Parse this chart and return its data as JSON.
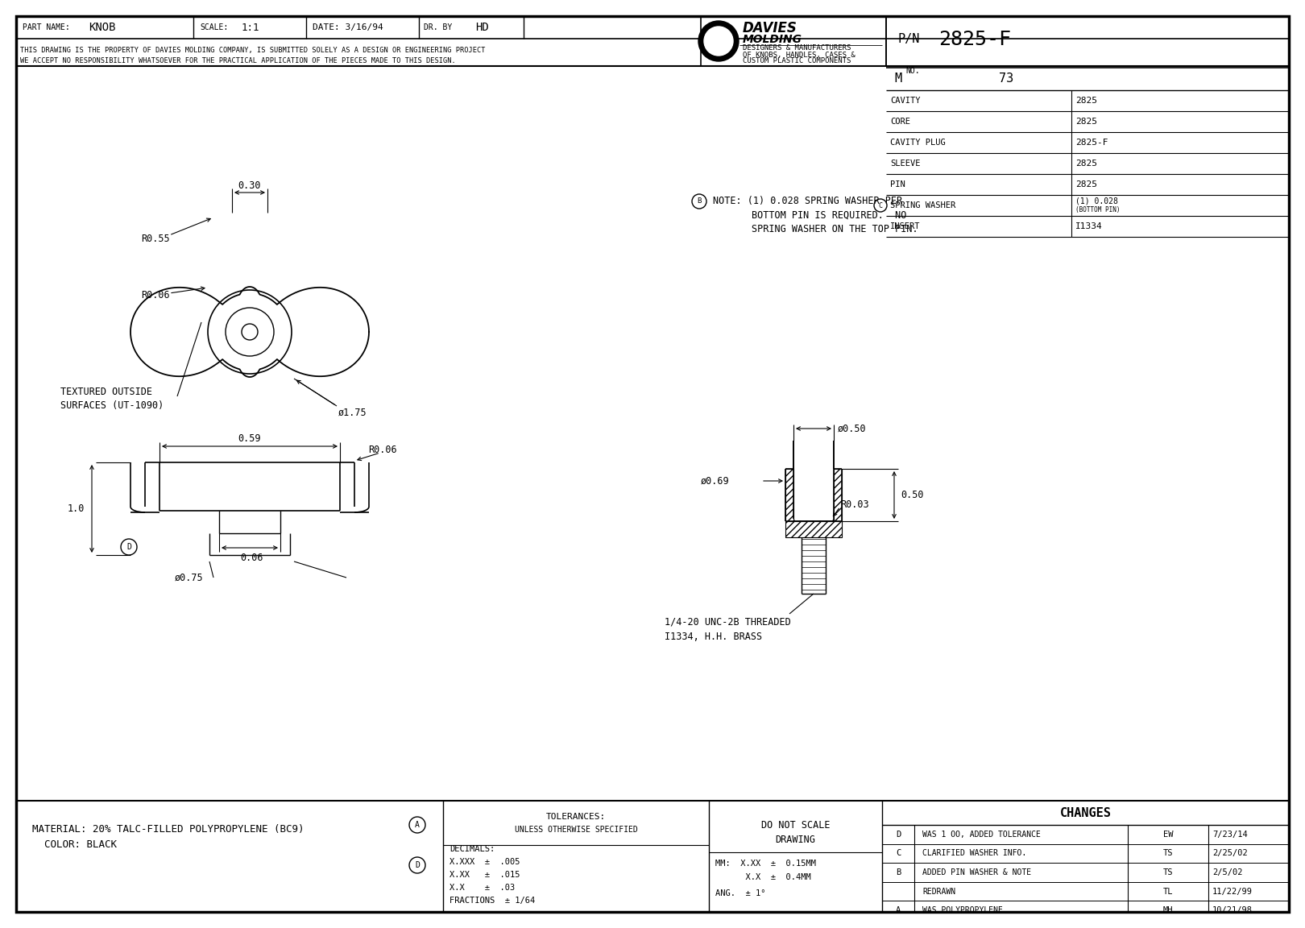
{
  "bg_color": "#ffffff",
  "part_name": "KNOB",
  "scale": "1:1",
  "date": "3/16/94",
  "dr_by": "HD",
  "pn": "2825-F",
  "mno": "73",
  "disclaimer_1": "THIS DRAWING IS THE PROPERTY OF DAVIES MOLDING COMPANY, IS SUBMITTED SOLELY AS A DESIGN OR ENGINEERING PROJECT",
  "disclaimer_2": "WE ACCEPT NO RESPONSIBILITY WHATSOEVER FOR THE PRACTICAL APPLICATION OF THE PIECES MADE TO THIS DESIGN.",
  "davies_desc1": "DESIGNERS & MANUFACTURERS",
  "davies_desc2": "OF KNOBS, HANDLES, CASES &",
  "davies_desc3": "CUSTOM PLASTIC COMPONENTS",
  "table_rows": [
    [
      "CAVITY",
      "2825"
    ],
    [
      "CORE",
      "2825"
    ],
    [
      "CAVITY PLUG",
      "2825-F"
    ],
    [
      "SLEEVE",
      "2825"
    ],
    [
      "PIN",
      "2825"
    ],
    [
      "SPRING WASHER",
      "(1) 0.028 (BOTTOM PIN)"
    ],
    [
      "INSERT",
      "I1334"
    ]
  ],
  "note_line1": "NOTE: (1) 0.028 SPRING WASHER PER",
  "note_line2": "BOTTOM PIN IS REQUIRED.  NO",
  "note_line3": "SPRING WASHER ON THE TOP PIN.",
  "material_line1": "MATERIAL: 20% TALC-FILLED POLYPROPYLENE (BC9)",
  "material_line2": "  COLOR: BLACK",
  "tolerances_title": "TOLERANCES:",
  "tolerances_sub": "UNLESS OTHERWISE SPECIFIED",
  "decimals_label": "DECIMALS:",
  "dec_xxx": "X.XXX  ±  .005",
  "dec_xx": "X.XX   ±  .015",
  "dec_x": "X.X    ±  .03",
  "fractions": "FRACTIONS  ± 1/64",
  "do_not_scale_1": "DO NOT SCALE",
  "do_not_scale_2": "DRAWING",
  "mm_1": "MM:  X.XX  ±  0.15MM",
  "mm_2": "      X.X  ±  0.4MM",
  "ang": "ANG.  ± 1°",
  "changes_header": "CHANGES",
  "changes": [
    [
      "D",
      "WAS 1 OO, ADDED TOLERANCE",
      "EW",
      "7/23/14"
    ],
    [
      "C",
      "CLARIFIED WASHER INFO.",
      "TS",
      "2/25/02"
    ],
    [
      "B",
      "ADDED PIN WASHER & NOTE",
      "TS",
      "2/5/02"
    ],
    [
      " ",
      "REDRAWN",
      "TL",
      "11/22/99"
    ],
    [
      "A",
      "WAS POLYPROPYLENE",
      "MH",
      "10/21/98"
    ]
  ]
}
